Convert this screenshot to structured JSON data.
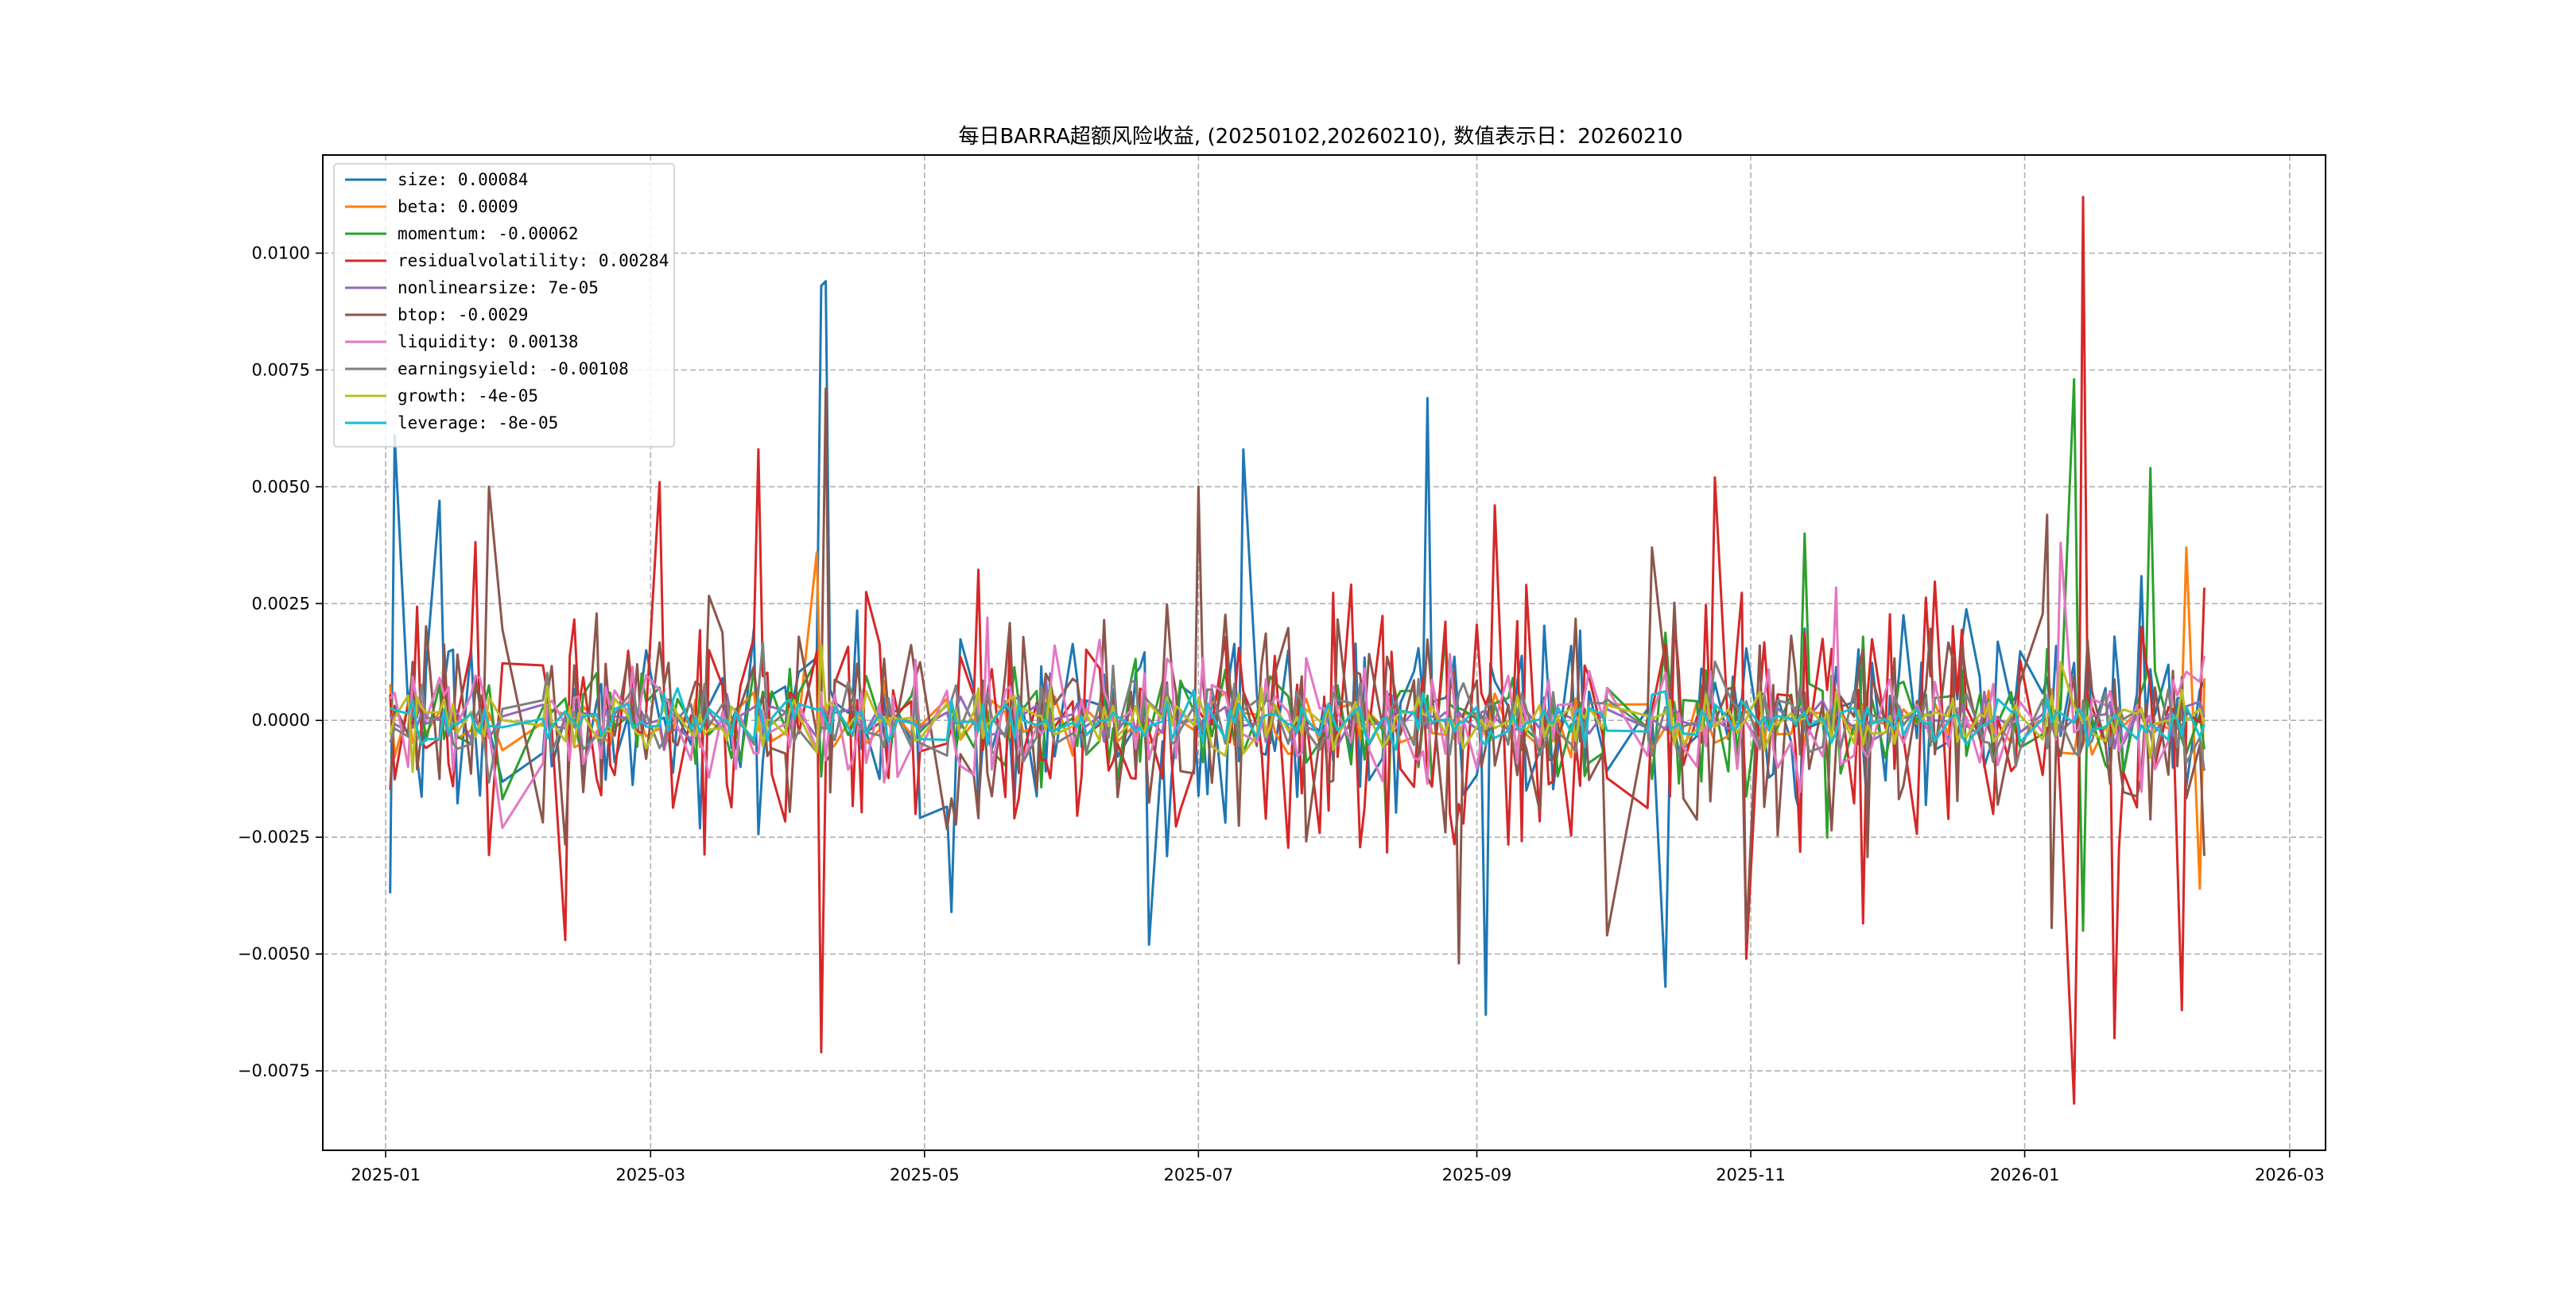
{
  "chart_data": {
    "type": "line",
    "title": "每日BARRA超额风险收益, (20250102,20260210), 数值表示日：20260210",
    "xlabel": "",
    "ylabel": "",
    "xlim": [
      "2024-12-18",
      "2026-03-09"
    ],
    "ylim": [
      -0.0092,
      0.0121
    ],
    "x_ticks": [
      "2025-01-01",
      "2025-03-01",
      "2025-05-01",
      "2025-07-01",
      "2025-09-01",
      "2025-11-01",
      "2026-01-01",
      "2026-03-01"
    ],
    "x_tick_labels": [
      "2025-01",
      "2025-03",
      "2025-05",
      "2025-07",
      "2025-09",
      "2025-11",
      "2026-01",
      "2026-03"
    ],
    "y_ticks": [
      -0.0075,
      -0.005,
      -0.0025,
      0.0,
      0.0025,
      0.005,
      0.0075,
      0.01
    ],
    "y_tick_labels": [
      "−0.0075",
      "−0.0050",
      "−0.0025",
      "0.0000",
      "0.0025",
      "0.0050",
      "0.0075",
      "0.0100"
    ],
    "grid": true,
    "legend_position": "top-left",
    "date_range": [
      "2025-01-02",
      "2026-02-10"
    ],
    "series": [
      {
        "name": "size",
        "legend": "size: 0.00084",
        "color": "#1f77b4",
        "amplitude": 0.0018,
        "z": 1,
        "spikes": [
          [
            "2025-01-03",
            0.0061
          ],
          [
            "2025-01-02",
            -0.0037
          ],
          [
            "2025-01-13",
            0.0047
          ],
          [
            "2025-04-08",
            0.0093
          ],
          [
            "2025-04-09",
            0.0094
          ],
          [
            "2025-05-07",
            -0.0041
          ],
          [
            "2025-06-20",
            -0.0048
          ],
          [
            "2025-08-21",
            0.0069
          ],
          [
            "2025-09-03",
            -0.0063
          ],
          [
            "2025-10-13",
            -0.0057
          ],
          [
            "2025-07-11",
            0.0058
          ],
          [
            "2026-02-10",
            0.00084
          ]
        ]
      },
      {
        "name": "beta",
        "legend": "beta: 0.0009",
        "color": "#ff7f0e",
        "amplitude": 0.0006,
        "z": 2,
        "spikes": [
          [
            "2025-04-07",
            0.0036
          ],
          [
            "2026-02-06",
            0.0037
          ],
          [
            "2026-02-09",
            -0.0036
          ],
          [
            "2026-02-10",
            0.0009
          ]
        ]
      },
      {
        "name": "momentum",
        "legend": "momentum: -0.00062",
        "color": "#2ca02c",
        "amplitude": 0.0012,
        "z": 3,
        "spikes": [
          [
            "2026-01-12",
            0.0073
          ],
          [
            "2026-01-29",
            0.0054
          ],
          [
            "2025-11-13",
            0.004
          ],
          [
            "2026-01-14",
            -0.0045
          ],
          [
            "2026-02-10",
            -0.00062
          ]
        ]
      },
      {
        "name": "residualvolatility",
        "legend": "residualvolatility: 0.00284",
        "color": "#d62728",
        "amplitude": 0.0022,
        "z": 4,
        "spikes": [
          [
            "2026-01-14",
            0.0112
          ],
          [
            "2026-01-12",
            -0.0082
          ],
          [
            "2025-04-08",
            -0.0071
          ],
          [
            "2025-02-10",
            -0.0047
          ],
          [
            "2025-03-25",
            0.0058
          ],
          [
            "2025-03-03",
            0.0051
          ],
          [
            "2025-10-24",
            0.0052
          ],
          [
            "2025-10-31",
            -0.0051
          ],
          [
            "2026-01-21",
            -0.0068
          ],
          [
            "2026-02-05",
            -0.0062
          ],
          [
            "2025-09-06",
            0.0046
          ],
          [
            "2026-02-10",
            0.00284
          ]
        ]
      },
      {
        "name": "nonlinearsize",
        "legend": "nonlinearsize: 7e-05",
        "color": "#9467bd",
        "amplitude": 0.0004,
        "z": 5,
        "spikes": [
          [
            "2026-02-10",
            7e-05
          ]
        ]
      },
      {
        "name": "btop",
        "legend": "btop: -0.0029",
        "color": "#8c564b",
        "amplitude": 0.0019,
        "z": 6,
        "spikes": [
          [
            "2025-01-24",
            0.005
          ],
          [
            "2025-04-09",
            0.0071
          ],
          [
            "2025-07-01",
            0.005
          ],
          [
            "2025-08-28",
            -0.0052
          ],
          [
            "2025-10-02",
            -0.0046
          ],
          [
            "2025-11-01",
            -0.0047
          ],
          [
            "2025-10-10",
            0.0037
          ],
          [
            "2026-01-06",
            0.0044
          ],
          [
            "2026-02-10",
            -0.0029
          ]
        ]
      },
      {
        "name": "liquidity",
        "legend": "liquidity: 0.00138",
        "color": "#e377c2",
        "amplitude": 0.0011,
        "z": 7,
        "spikes": [
          [
            "2025-01-29",
            -0.0023
          ],
          [
            "2025-05-15",
            0.0022
          ],
          [
            "2026-01-09",
            0.0038
          ],
          [
            "2026-02-10",
            0.00138
          ]
        ]
      },
      {
        "name": "earningsyield",
        "legend": "earningsyield: -0.00108",
        "color": "#7f7f7f",
        "amplitude": 0.0007,
        "z": 8,
        "spikes": [
          [
            "2026-02-10",
            -0.00108
          ]
        ]
      },
      {
        "name": "growth",
        "legend": "growth: -4e-05",
        "color": "#bcbd22",
        "amplitude": 0.0005,
        "z": 9,
        "spikes": [
          [
            "2025-01-07",
            -0.0011
          ],
          [
            "2025-04-08",
            0.0016
          ],
          [
            "2026-02-10",
            -4e-05
          ]
        ]
      },
      {
        "name": "leverage",
        "legend": "leverage: -8e-05",
        "color": "#17becf",
        "amplitude": 0.00045,
        "z": 10,
        "spikes": [
          [
            "2026-02-10",
            -8e-05
          ]
        ]
      }
    ]
  }
}
